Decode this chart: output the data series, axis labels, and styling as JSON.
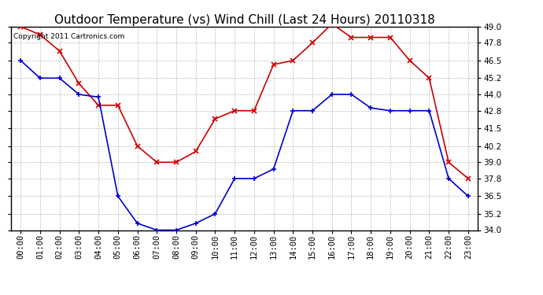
{
  "title": "Outdoor Temperature (vs) Wind Chill (Last 24 Hours) 20110318",
  "copyright_text": "Copyright 2011 Cartronics.com",
  "hours": [
    "00:00",
    "01:00",
    "02:00",
    "03:00",
    "04:00",
    "05:00",
    "06:00",
    "07:00",
    "08:00",
    "09:00",
    "10:00",
    "11:00",
    "12:00",
    "13:00",
    "14:00",
    "15:00",
    "16:00",
    "17:00",
    "18:00",
    "19:00",
    "20:00",
    "21:00",
    "22:00",
    "23:00"
  ],
  "temp": [
    46.5,
    45.2,
    45.2,
    44.0,
    43.8,
    36.5,
    34.5,
    34.0,
    34.0,
    34.5,
    35.2,
    37.8,
    37.8,
    38.5,
    42.8,
    42.8,
    44.0,
    44.0,
    43.0,
    42.8,
    42.8,
    42.8,
    37.8,
    36.5
  ],
  "wind_chill": [
    49.0,
    48.4,
    47.2,
    44.8,
    43.2,
    43.2,
    40.2,
    39.0,
    39.0,
    39.8,
    42.2,
    42.8,
    42.8,
    46.2,
    46.5,
    47.8,
    49.2,
    48.2,
    48.2,
    48.2,
    46.5,
    45.2,
    39.0,
    37.8
  ],
  "temp_color": "#0000cc",
  "wind_chill_color": "#cc0000",
  "ylim_min": 34.0,
  "ylim_max": 49.0,
  "yticks": [
    34.0,
    35.2,
    36.5,
    37.8,
    39.0,
    40.2,
    41.5,
    42.8,
    44.0,
    45.2,
    46.5,
    47.8,
    49.0
  ],
  "bg_color": "#ffffff",
  "grid_color": "#bbbbbb",
  "title_fontsize": 11,
  "copyright_fontsize": 6.5,
  "tick_fontsize": 7.5
}
